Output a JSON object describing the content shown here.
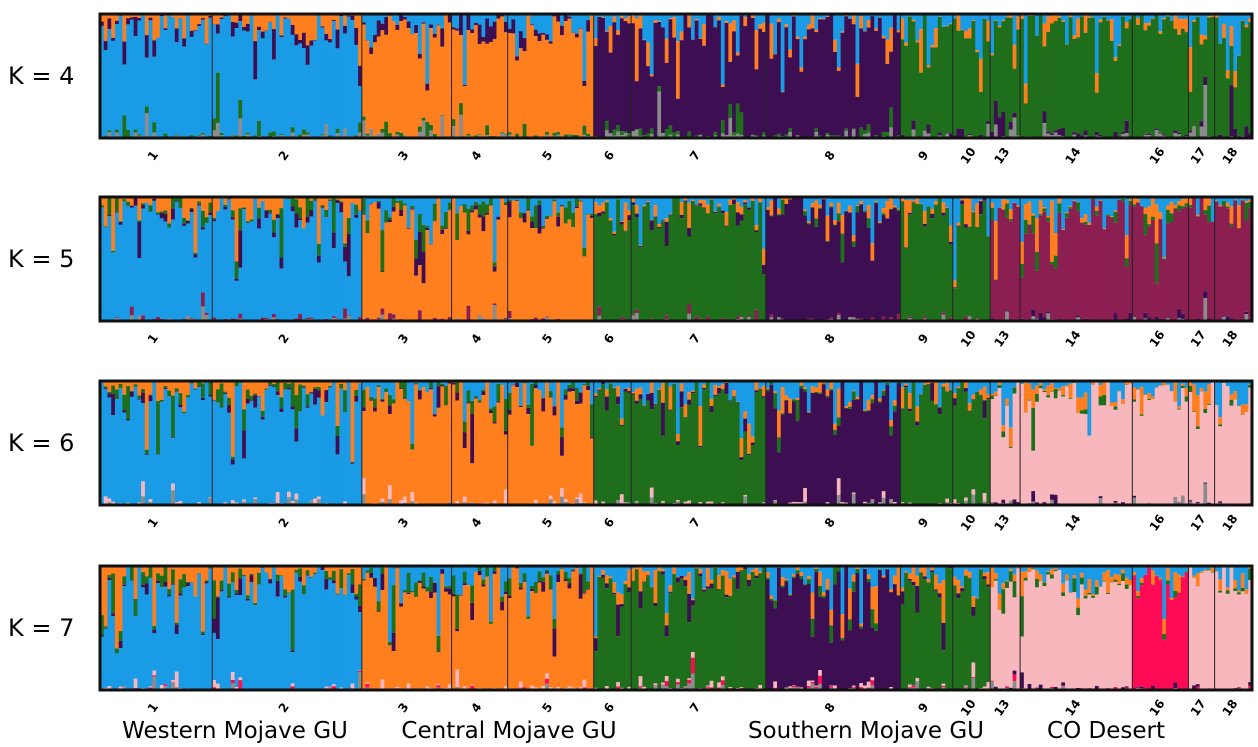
{
  "chart_data": {
    "type": "bar",
    "subtype": "stacked-admixture",
    "panels": [
      {
        "label": "K = 4",
        "k": 4
      },
      {
        "label": "K = 5",
        "k": 5
      },
      {
        "label": "K = 6",
        "k": 6
      },
      {
        "label": "K = 7",
        "k": 7
      }
    ],
    "populations": [
      {
        "label": "1",
        "n": 30,
        "cluster": "blue"
      },
      {
        "label": "2",
        "n": 40,
        "cluster": "blue"
      },
      {
        "label": "3",
        "n": 24,
        "cluster": "orange"
      },
      {
        "label": "4",
        "n": 15,
        "cluster": "orange"
      },
      {
        "label": "5",
        "n": 23,
        "cluster": "orange"
      },
      {
        "label": "6",
        "n": 10,
        "cluster": "south"
      },
      {
        "label": "7",
        "n": 36,
        "cluster": "south"
      },
      {
        "label": "8",
        "n": 36,
        "cluster": "south2"
      },
      {
        "label": "9",
        "n": 14,
        "cluster": "south3"
      },
      {
        "label": "10",
        "n": 10,
        "cluster": "south3"
      },
      {
        "label": "13",
        "n": 8,
        "cluster": "co"
      },
      {
        "label": "14",
        "n": 30,
        "cluster": "co"
      },
      {
        "label": "16",
        "n": 15,
        "cluster": "co16"
      },
      {
        "label": "17",
        "n": 7,
        "cluster": "co"
      },
      {
        "label": "18",
        "n": 10,
        "cluster": "co"
      }
    ],
    "regions": [
      {
        "label": "Western Mojave GU",
        "pops": [
          "1",
          "2"
        ]
      },
      {
        "label": "Central Mojave GU",
        "pops": [
          "3",
          "4",
          "5"
        ]
      },
      {
        "label": "Southern Mojave GU",
        "pops": [
          "6",
          "7",
          "8",
          "9",
          "10"
        ]
      },
      {
        "label": "CO Desert",
        "pops": [
          "13",
          "14",
          "16",
          "17",
          "18"
        ]
      }
    ],
    "colors": {
      "blue": "#1a9be6",
      "orange": "#ff7f1e",
      "purple": "#3d0f52",
      "green": "#1f6e1c",
      "maroon": "#8c1f52",
      "pink": "#f7b7bd",
      "red": "#ff0a54",
      "gray": "#8c8c8c"
    },
    "dominant_cluster_by_k": {
      "K = 4": {
        "blue": "blue",
        "orange": "orange",
        "south": "purple",
        "south2": "purple",
        "south3": "green",
        "co": "green",
        "co16": "green"
      },
      "K = 5": {
        "blue": "blue",
        "orange": "orange",
        "south": "green",
        "south2": "purple",
        "south3": "green",
        "co": "maroon",
        "co16": "maroon"
      },
      "K = 6": {
        "blue": "blue",
        "orange": "orange",
        "south": "green",
        "south2": "purple",
        "south3": "green",
        "co": "pink",
        "co16": "pink"
      },
      "K = 7": {
        "blue": "blue",
        "orange": "orange",
        "south": "green",
        "south2": "purple",
        "south3": "green",
        "co": "pink",
        "co16": "red"
      }
    },
    "ylim": [
      0,
      1
    ]
  }
}
